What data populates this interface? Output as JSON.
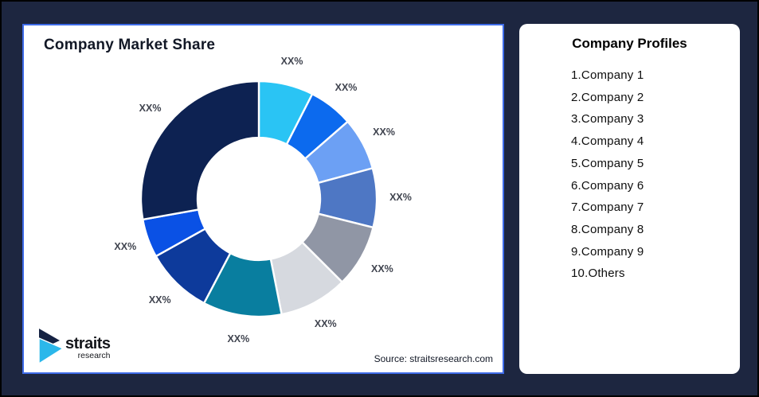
{
  "frame": {
    "background": "#1D2640",
    "outer_border": "#000000"
  },
  "market_share_card": {
    "title": "Company Market Share",
    "border_color": "#3E6BE8",
    "source_note": "Source: straitsresearch.com"
  },
  "logo": {
    "name": "straits",
    "subname": "research",
    "mark_navy": "#152242",
    "mark_cyan": "#2BB7EA"
  },
  "profiles_card": {
    "title": "Company Profiles",
    "items": [
      "1.Company 1",
      "2.Company 2",
      "3.Company 3",
      "4.Company 4",
      "5.Company 5",
      "6.Company 6",
      "7.Company 7",
      "8.Company 8",
      "9.Company 9",
      "10.Others"
    ]
  },
  "chart_data": {
    "type": "pie",
    "subtype": "donut",
    "title": "Company Market Share",
    "categories": [
      "Company 1",
      "Company 2",
      "Company 3",
      "Company 4",
      "Company 5",
      "Company 6",
      "Company 7",
      "Company 8",
      "Company 9",
      "Others"
    ],
    "labels": [
      "XX%",
      "XX%",
      "XX%",
      "XX%",
      "XX%",
      "XX%",
      "XX%",
      "XX%",
      "XX%",
      "XX%"
    ],
    "values_pct_estimated_from_arc": [
      7.5,
      6.1,
      7.2,
      8.1,
      8.6,
      9.4,
      10.8,
      9.2,
      5.3,
      27.8
    ],
    "colors": [
      "#2AC4F4",
      "#0C6AEE",
      "#6CA0F4",
      "#4E77C4",
      "#9096A5",
      "#D6D9DF",
      "#097E9F",
      "#0D3A9B",
      "#0A51E5",
      "#0D2252"
    ],
    "start_angle_deg": 0,
    "clockwise": true,
    "outer_radius_px": 148,
    "inner_radius_ratio": 0.52,
    "label_radius_px": 178,
    "label_color": "#40444F",
    "slice_gap_color": "#FFFFFF",
    "legend": "none"
  }
}
